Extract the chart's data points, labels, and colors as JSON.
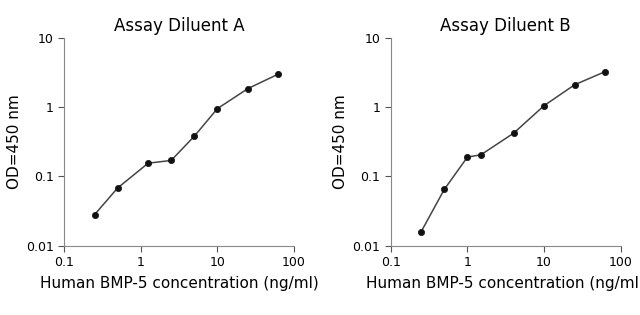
{
  "panel_A": {
    "title": "Assay Diluent A",
    "x": [
      0.25,
      0.5,
      1.25,
      2.5,
      5.0,
      10.0,
      25.0,
      62.5
    ],
    "y": [
      0.028,
      0.068,
      0.155,
      0.17,
      0.38,
      0.95,
      1.85,
      3.0
    ]
  },
  "panel_B": {
    "title": "Assay Diluent B",
    "x": [
      0.25,
      0.5,
      1.0,
      1.5,
      4.0,
      10.0,
      25.0,
      62.5
    ],
    "y": [
      0.016,
      0.065,
      0.19,
      0.205,
      0.42,
      1.05,
      2.1,
      3.25
    ]
  },
  "xlabel": "Human BMP-5 concentration (ng/ml)",
  "ylabel": "OD=450 nm",
  "xlim": [
    0.15,
    100
  ],
  "ylim": [
    0.01,
    10
  ],
  "xticks": [
    0.1,
    1,
    10,
    100
  ],
  "yticks": [
    0.01,
    0.1,
    1,
    10
  ],
  "xtick_labels": [
    "0.1",
    "1",
    "10",
    "100"
  ],
  "ytick_labels": [
    "0.01",
    "0.1",
    "1",
    "10"
  ],
  "line_color": "#444444",
  "marker_color": "#111111",
  "bg_color": "#ffffff",
  "title_fontsize": 12,
  "label_fontsize": 11,
  "tick_fontsize": 9,
  "figsize": [
    6.4,
    3.15
  ],
  "dpi": 100
}
